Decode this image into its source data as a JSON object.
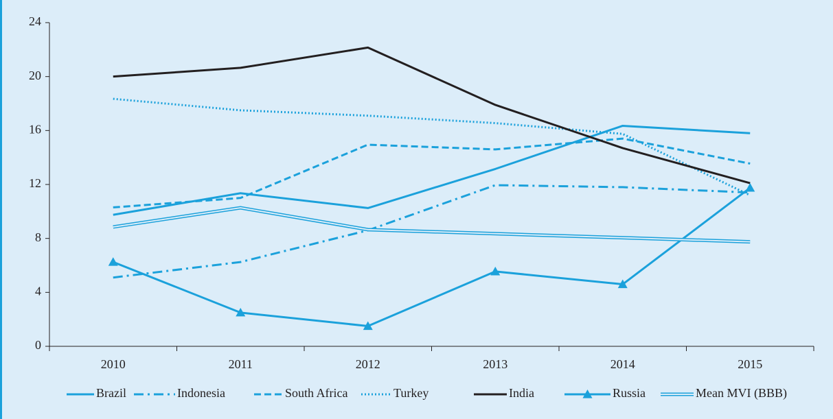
{
  "chart_data": {
    "type": "line",
    "categories": [
      "2010",
      "2011",
      "2012",
      "2013",
      "2014",
      "2015"
    ],
    "series": [
      {
        "name": "Brazil",
        "color": "#1ba1db",
        "dash": "solid",
        "values": [
          9.75,
          11.35,
          10.25,
          13.15,
          16.35,
          15.8
        ]
      },
      {
        "name": "Indonesia",
        "color": "#1ba1db",
        "dash": "dashdot",
        "values": [
          5.1,
          6.25,
          8.6,
          11.95,
          11.8,
          11.4
        ]
      },
      {
        "name": "South Africa",
        "color": "#1ba1db",
        "dash": "dashed",
        "values": [
          10.3,
          11.0,
          14.95,
          14.6,
          15.4,
          13.55
        ]
      },
      {
        "name": "Turkey",
        "color": "#1ba1db",
        "dash": "dotted",
        "values": [
          18.35,
          17.5,
          17.1,
          16.55,
          15.75,
          11.2
        ]
      },
      {
        "name": "India",
        "color": "#231f20",
        "dash": "solid",
        "values": [
          20.0,
          20.65,
          22.15,
          17.9,
          14.7,
          12.1
        ]
      },
      {
        "name": "Russia",
        "color": "#1ba1db",
        "dash": "solid",
        "marker": "triangle",
        "values": [
          6.25,
          2.5,
          1.5,
          5.55,
          4.6,
          11.75
        ]
      },
      {
        "name": "Mean MVI (BBB)",
        "color": "#1ba1db",
        "dash": "double",
        "values": [
          8.85,
          10.27,
          8.65,
          8.35,
          8.05,
          7.75
        ]
      }
    ],
    "ylim": [
      0,
      24
    ],
    "yticks": [
      0,
      4,
      8,
      12,
      16,
      20,
      24
    ],
    "legend": "bottom"
  }
}
